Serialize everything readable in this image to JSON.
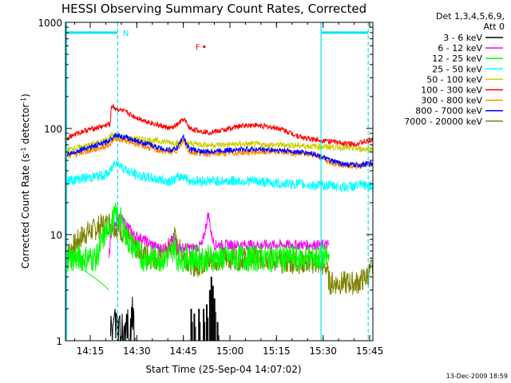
{
  "chart_data": {
    "type": "line",
    "title": "HESSI Observing Summary Count Rates, Corrected",
    "xlabel": "Start Time (25-Sep-04 14:07:02)",
    "ylabel": "Corrected Count Rate (s⁻¹ detector⁻¹)",
    "ylabel_parts": [
      "Corrected Count Rate (s",
      "-1",
      " detector",
      "-1",
      ")"
    ],
    "x_unit": "minutes since 14:07:02",
    "xlim": [
      0,
      99
    ],
    "ylim": [
      1,
      1000
    ],
    "y_scale": "log",
    "x_ticks": [
      {
        "t": 7.97,
        "label": "14:15"
      },
      {
        "t": 22.97,
        "label": "14:30"
      },
      {
        "t": 37.97,
        "label": "14:45"
      },
      {
        "t": 52.97,
        "label": "15:00"
      },
      {
        "t": 67.97,
        "label": "15:15"
      },
      {
        "t": 82.97,
        "label": "15:30"
      },
      {
        "t": 97.97,
        "label": "15:45"
      }
    ],
    "y_ticks": [
      {
        "v": 1,
        "label": "1"
      },
      {
        "v": 10,
        "label": "10"
      },
      {
        "v": 100,
        "label": "100"
      },
      {
        "v": 1000,
        "label": "1000"
      }
    ],
    "legend_header": [
      "Det 1,3,4,5,6,9,",
      "Att 0"
    ],
    "legend_position": "right",
    "grid": false,
    "series": [
      {
        "name": "3 - 6 keV",
        "color": "#000000",
        "points": [
          [
            14.5,
            2
          ],
          [
            15,
            1.2
          ],
          [
            16,
            2
          ],
          [
            17,
            1.5
          ],
          [
            18,
            2
          ],
          [
            19,
            1.3
          ],
          [
            20,
            2
          ],
          [
            21,
            1.6
          ],
          [
            21.5,
            2.7
          ],
          [
            22,
            1.8
          ],
          [
            22.5,
            1
          ]
        ],
        "spikes": [
          [
            40.5,
            2
          ],
          [
            41.5,
            1.8
          ],
          [
            43,
            2
          ],
          [
            44.5,
            2
          ],
          [
            45.5,
            2.2
          ],
          [
            46.5,
            3
          ],
          [
            47,
            4
          ],
          [
            47.5,
            3.3
          ],
          [
            48,
            2.5
          ],
          [
            49,
            1.5
          ]
        ]
      },
      {
        "name": "6 - 12 keV",
        "color": "#ff00ff",
        "points": [
          [
            14,
            6
          ],
          [
            14.5,
            9
          ],
          [
            15,
            12
          ],
          [
            16,
            13
          ],
          [
            17,
            14
          ],
          [
            18,
            14
          ],
          [
            19,
            13
          ],
          [
            20,
            12
          ],
          [
            22,
            10
          ],
          [
            25,
            9
          ],
          [
            28,
            8
          ],
          [
            30,
            7.5
          ],
          [
            32,
            7.5
          ],
          [
            34,
            8.5
          ],
          [
            35,
            9.5
          ],
          [
            36,
            7.5
          ],
          [
            38,
            7.5
          ],
          [
            40,
            7.5
          ],
          [
            42,
            7.5
          ],
          [
            44,
            8
          ],
          [
            45,
            11
          ],
          [
            46,
            16
          ],
          [
            47,
            10
          ],
          [
            48,
            8
          ],
          [
            50,
            8
          ],
          [
            55,
            8
          ],
          [
            60,
            8
          ],
          [
            65,
            8
          ],
          [
            70,
            8
          ],
          [
            75,
            8
          ],
          [
            80,
            8
          ],
          [
            85,
            8
          ]
        ],
        "band": 1.12
      },
      {
        "name": "12 - 25 keV",
        "color": "#00ff00",
        "points": [
          [
            0,
            6
          ],
          [
            2,
            6
          ],
          [
            4,
            6
          ],
          [
            6,
            6
          ],
          [
            8,
            6
          ],
          [
            10,
            6
          ],
          [
            12,
            9
          ],
          [
            14,
            12
          ],
          [
            15,
            13
          ],
          [
            16,
            15
          ],
          [
            17,
            15
          ],
          [
            18,
            13
          ],
          [
            19,
            11
          ],
          [
            20,
            9
          ],
          [
            22,
            7.5
          ],
          [
            25,
            6
          ],
          [
            28,
            6
          ],
          [
            30,
            6
          ],
          [
            32,
            6
          ],
          [
            34,
            6.5
          ],
          [
            35,
            8
          ],
          [
            36,
            6
          ],
          [
            40,
            6
          ],
          [
            45,
            6
          ],
          [
            50,
            6
          ],
          [
            55,
            6
          ],
          [
            60,
            6
          ],
          [
            65,
            6
          ],
          [
            70,
            6
          ],
          [
            75,
            6
          ],
          [
            80,
            6
          ],
          [
            85,
            6
          ]
        ],
        "band": 1.35,
        "decay": [
          [
            3,
            5.5
          ],
          [
            6,
            4.6
          ],
          [
            9,
            4
          ],
          [
            12,
            3.4
          ],
          [
            14,
            3
          ]
        ]
      },
      {
        "name": "25 - 50 keV",
        "color": "#00ffff",
        "points": [
          [
            0,
            32
          ],
          [
            3,
            33
          ],
          [
            6,
            34
          ],
          [
            9,
            35
          ],
          [
            12,
            36
          ],
          [
            14,
            38
          ],
          [
            15,
            42
          ],
          [
            16,
            50
          ],
          [
            17,
            47
          ],
          [
            18,
            44
          ],
          [
            19,
            42
          ],
          [
            20,
            40
          ],
          [
            22,
            37
          ],
          [
            25,
            35
          ],
          [
            30,
            33
          ],
          [
            33,
            32
          ],
          [
            35,
            33
          ],
          [
            37,
            35
          ],
          [
            38,
            36
          ],
          [
            39,
            34
          ],
          [
            40,
            32
          ],
          [
            45,
            32
          ],
          [
            50,
            32
          ],
          [
            55,
            32
          ],
          [
            60,
            32
          ],
          [
            65,
            31
          ],
          [
            70,
            30
          ],
          [
            75,
            30
          ],
          [
            80,
            29
          ],
          [
            85,
            29
          ],
          [
            90,
            28
          ],
          [
            95,
            29
          ],
          [
            99,
            29
          ]
        ],
        "band": 1.12
      },
      {
        "name": "50 - 100 keV",
        "color": "#cccc00",
        "points": [
          [
            0,
            63
          ],
          [
            3,
            65
          ],
          [
            6,
            68
          ],
          [
            9,
            71
          ],
          [
            12,
            76
          ],
          [
            14,
            80
          ],
          [
            15,
            88
          ],
          [
            16,
            84
          ],
          [
            18,
            82
          ],
          [
            22,
            80
          ],
          [
            26,
            78
          ],
          [
            30,
            76
          ],
          [
            34,
            74
          ],
          [
            38,
            72
          ],
          [
            42,
            72
          ],
          [
            46,
            70
          ],
          [
            50,
            70
          ],
          [
            55,
            71
          ],
          [
            60,
            71
          ],
          [
            65,
            70
          ],
          [
            70,
            70
          ],
          [
            75,
            69
          ],
          [
            80,
            68
          ],
          [
            85,
            67
          ],
          [
            90,
            66
          ],
          [
            95,
            64
          ],
          [
            99,
            64
          ]
        ],
        "band": 1.07
      },
      {
        "name": "100 - 300 keV",
        "color": "#ff0000",
        "points": [
          [
            0,
            80
          ],
          [
            3,
            88
          ],
          [
            6,
            95
          ],
          [
            9,
            100
          ],
          [
            12,
            105
          ],
          [
            14.5,
            110
          ],
          [
            14.7,
            165
          ],
          [
            16,
            155
          ],
          [
            18,
            148
          ],
          [
            20,
            140
          ],
          [
            22,
            130
          ],
          [
            25,
            120
          ],
          [
            28,
            112
          ],
          [
            31,
            105
          ],
          [
            34,
            100
          ],
          [
            36,
            108
          ],
          [
            37,
            115
          ],
          [
            38,
            122
          ],
          [
            39,
            112
          ],
          [
            40,
            100
          ],
          [
            43,
            95
          ],
          [
            46,
            92
          ],
          [
            50,
            95
          ],
          [
            53,
            100
          ],
          [
            56,
            105
          ],
          [
            60,
            108
          ],
          [
            63,
            106
          ],
          [
            66,
            103
          ],
          [
            69,
            100
          ],
          [
            72,
            92
          ],
          [
            75,
            85
          ],
          [
            78,
            80
          ],
          [
            82,
            78
          ],
          [
            86,
            75
          ],
          [
            90,
            72
          ],
          [
            94,
            72
          ],
          [
            99,
            78
          ]
        ],
        "band": 1.06
      },
      {
        "name": "300 - 800 keV",
        "color": "#ff8800",
        "points": [
          [
            0,
            55
          ],
          [
            3,
            57
          ],
          [
            6,
            60
          ],
          [
            9,
            63
          ],
          [
            12,
            67
          ],
          [
            14,
            70
          ],
          [
            16,
            82
          ],
          [
            18,
            78
          ],
          [
            22,
            73
          ],
          [
            26,
            67
          ],
          [
            30,
            62
          ],
          [
            34,
            60
          ],
          [
            36,
            63
          ],
          [
            37,
            70
          ],
          [
            38,
            78
          ],
          [
            39,
            67
          ],
          [
            40,
            60
          ],
          [
            45,
            58
          ],
          [
            50,
            58
          ],
          [
            55,
            59
          ],
          [
            60,
            60
          ],
          [
            65,
            60
          ],
          [
            70,
            60
          ],
          [
            75,
            58
          ],
          [
            80,
            57
          ],
          [
            83,
            52
          ],
          [
            86,
            48
          ],
          [
            90,
            45
          ],
          [
            94,
            44
          ],
          [
            99,
            46
          ]
        ],
        "band": 1.07
      },
      {
        "name": "800 - 7000 keV",
        "color": "#0000ff",
        "points": [
          [
            0,
            56
          ],
          [
            3,
            60
          ],
          [
            6,
            65
          ],
          [
            9,
            68
          ],
          [
            12,
            72
          ],
          [
            14,
            77
          ],
          [
            16,
            88
          ],
          [
            18,
            84
          ],
          [
            22,
            78
          ],
          [
            26,
            72
          ],
          [
            30,
            66
          ],
          [
            34,
            62
          ],
          [
            36,
            66
          ],
          [
            37,
            75
          ],
          [
            38,
            85
          ],
          [
            39,
            70
          ],
          [
            40,
            64
          ],
          [
            45,
            60
          ],
          [
            50,
            62
          ],
          [
            55,
            63
          ],
          [
            60,
            64
          ],
          [
            65,
            63
          ],
          [
            70,
            62
          ],
          [
            75,
            60
          ],
          [
            80,
            58
          ],
          [
            83,
            53
          ],
          [
            86,
            49
          ],
          [
            90,
            46
          ],
          [
            94,
            45
          ],
          [
            99,
            47
          ]
        ],
        "band": 1.06
      },
      {
        "name": "7000 - 20000 keV",
        "color": "#808000",
        "points": [
          [
            0,
            5
          ],
          [
            1,
            7
          ],
          [
            3,
            8
          ],
          [
            5,
            9.5
          ],
          [
            7,
            10.5
          ],
          [
            9,
            11
          ],
          [
            11,
            12
          ],
          [
            13,
            12.5
          ],
          [
            14,
            13
          ],
          [
            16,
            12
          ],
          [
            18,
            11
          ],
          [
            20,
            9.5
          ],
          [
            22,
            8
          ],
          [
            24,
            7
          ],
          [
            26,
            6.5
          ],
          [
            28,
            6
          ],
          [
            30,
            6
          ],
          [
            32,
            6.5
          ],
          [
            34,
            8
          ],
          [
            35,
            10
          ],
          [
            36,
            7.5
          ],
          [
            38,
            6.5
          ],
          [
            40,
            5.5
          ],
          [
            42,
            5
          ],
          [
            45,
            5.5
          ],
          [
            50,
            6
          ],
          [
            55,
            6
          ],
          [
            60,
            6
          ],
          [
            65,
            6
          ],
          [
            70,
            5.5
          ],
          [
            75,
            5.5
          ],
          [
            80,
            5.5
          ],
          [
            84,
            5
          ],
          [
            85,
            3.5
          ],
          [
            88,
            3.5
          ],
          [
            91,
            3.5
          ],
          [
            94,
            3.5
          ],
          [
            97,
            4
          ],
          [
            99,
            5
          ]
        ],
        "band": 1.3
      }
    ],
    "markers": {
      "cyan_vlines": [
        {
          "t": 16.8,
          "style": "dashed"
        },
        {
          "t": 82.3,
          "style": "solid"
        },
        {
          "t": 97.5,
          "style": "dashed"
        }
      ],
      "night_bars": [
        [
          0,
          16.8
        ],
        [
          82.3,
          97.5
        ]
      ],
      "night_bar_level": 800,
      "n_label": {
        "text": "N",
        "t": 18.5
      },
      "flare_label": {
        "text": "F",
        "t": 42.6,
        "level": 590
      },
      "flare_dot": {
        "t": 44.7,
        "level": 590
      },
      "cyan_left_edge": {
        "t": 0
      }
    },
    "footer_date": "13-Dec-2009 18:59"
  }
}
